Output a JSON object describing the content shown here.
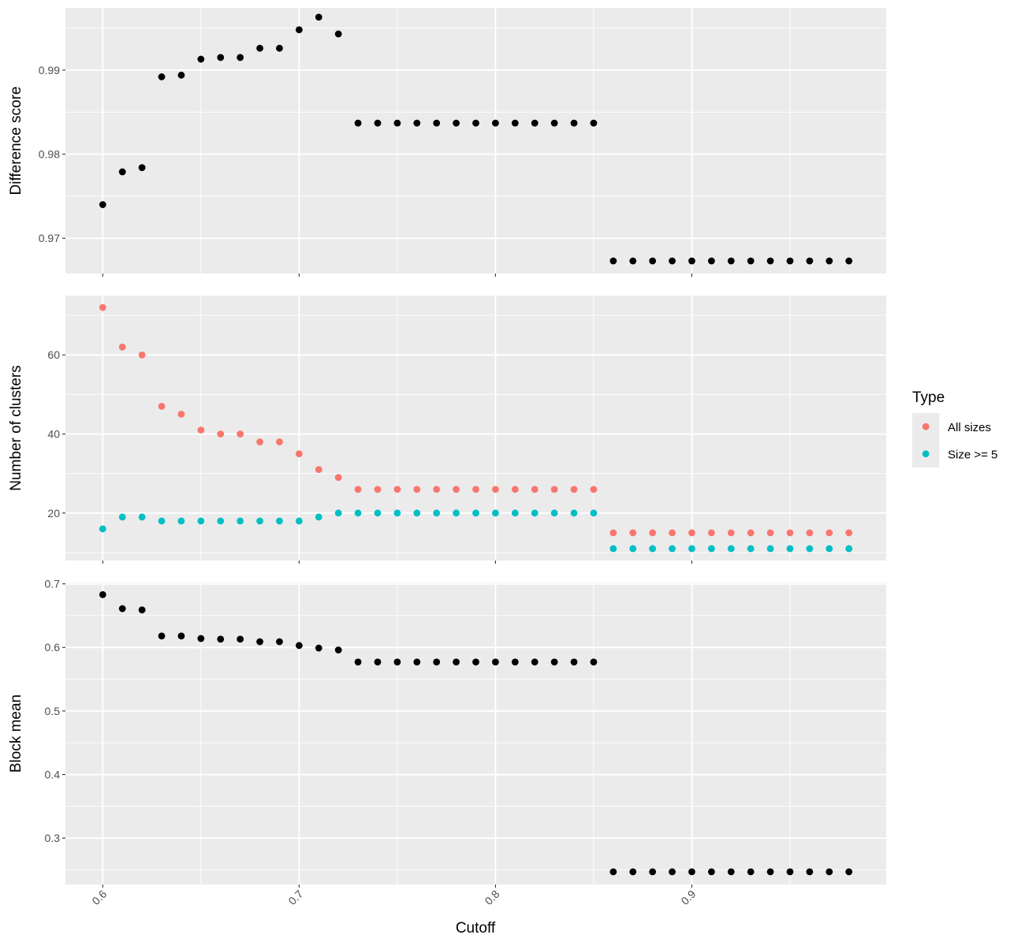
{
  "chart_data": {
    "type": "scatter",
    "xlabel": "Cutoff",
    "xlim": [
      0.581,
      0.999
    ],
    "x_ticks": [
      0.6,
      0.7,
      0.8,
      0.9
    ],
    "x_tick_labels": [
      "0.6",
      "0.7",
      "0.8",
      "0.9"
    ],
    "grid": true,
    "colors": {
      "panel_bg": "#ebebeb",
      "grid_major": "#ffffff",
      "point_default": "#000000",
      "all_sizes": "#f8766d",
      "size_ge5": "#00bfc4",
      "legend_key_bg": "#ebebeb"
    },
    "legend": {
      "title": "Type",
      "position": "right",
      "entries": [
        {
          "label": "All sizes",
          "color": "#f8766d"
        },
        {
          "label": "Size >= 5",
          "color": "#00bfc4"
        }
      ]
    },
    "panels": [
      {
        "ylabel": "Difference score",
        "ylim": [
          0.9658,
          0.9974
        ],
        "y_ticks": [
          0.97,
          0.98,
          0.99
        ],
        "y_tick_labels": [
          "0.97",
          "0.98",
          "0.99"
        ],
        "series": [
          {
            "color": "#000000",
            "x": [
              0.6,
              0.61,
              0.62,
              0.63,
              0.64,
              0.65,
              0.66,
              0.67,
              0.68,
              0.69,
              0.7,
              0.71,
              0.72,
              0.73,
              0.74,
              0.75,
              0.76,
              0.77,
              0.78,
              0.79,
              0.8,
              0.81,
              0.82,
              0.83,
              0.84,
              0.85,
              0.86,
              0.87,
              0.88,
              0.89,
              0.9,
              0.91,
              0.92,
              0.93,
              0.94,
              0.95,
              0.96,
              0.97,
              0.98
            ],
            "y": [
              0.974,
              0.9779,
              0.9784,
              0.9892,
              0.9894,
              0.9913,
              0.9915,
              0.9915,
              0.9926,
              0.9926,
              0.9948,
              0.9963,
              0.9943,
              0.9837,
              0.9837,
              0.9837,
              0.9837,
              0.9837,
              0.9837,
              0.9837,
              0.9837,
              0.9837,
              0.9837,
              0.9837,
              0.9837,
              0.9837,
              0.9673,
              0.9673,
              0.9673,
              0.9673,
              0.9673,
              0.9673,
              0.9673,
              0.9673,
              0.9673,
              0.9673,
              0.9673,
              0.9673,
              0.9673
            ]
          }
        ]
      },
      {
        "ylabel": "Number of clusters",
        "ylim": [
          8,
          75
        ],
        "y_ticks": [
          20,
          40,
          60
        ],
        "y_tick_labels": [
          "20",
          "40",
          "60"
        ],
        "series": [
          {
            "name": "All sizes",
            "color": "#f8766d",
            "x": [
              0.6,
              0.61,
              0.62,
              0.63,
              0.64,
              0.65,
              0.66,
              0.67,
              0.68,
              0.69,
              0.7,
              0.71,
              0.72,
              0.73,
              0.74,
              0.75,
              0.76,
              0.77,
              0.78,
              0.79,
              0.8,
              0.81,
              0.82,
              0.83,
              0.84,
              0.85,
              0.86,
              0.87,
              0.88,
              0.89,
              0.9,
              0.91,
              0.92,
              0.93,
              0.94,
              0.95,
              0.96,
              0.97,
              0.98
            ],
            "y": [
              72,
              62,
              60,
              47,
              45,
              41,
              40,
              40,
              38,
              38,
              35,
              31,
              29,
              26,
              26,
              26,
              26,
              26,
              26,
              26,
              26,
              26,
              26,
              26,
              26,
              26,
              15,
              15,
              15,
              15,
              15,
              15,
              15,
              15,
              15,
              15,
              15,
              15,
              15
            ]
          },
          {
            "name": "Size >= 5",
            "color": "#00bfc4",
            "x": [
              0.6,
              0.61,
              0.62,
              0.63,
              0.64,
              0.65,
              0.66,
              0.67,
              0.68,
              0.69,
              0.7,
              0.71,
              0.72,
              0.73,
              0.74,
              0.75,
              0.76,
              0.77,
              0.78,
              0.79,
              0.8,
              0.81,
              0.82,
              0.83,
              0.84,
              0.85,
              0.86,
              0.87,
              0.88,
              0.89,
              0.9,
              0.91,
              0.92,
              0.93,
              0.94,
              0.95,
              0.96,
              0.97,
              0.98
            ],
            "y": [
              16,
              19,
              19,
              18,
              18,
              18,
              18,
              18,
              18,
              18,
              18,
              19,
              20,
              20,
              20,
              20,
              20,
              20,
              20,
              20,
              20,
              20,
              20,
              20,
              20,
              20,
              11,
              11,
              11,
              11,
              11,
              11,
              11,
              11,
              11,
              11,
              11,
              11,
              11
            ]
          }
        ]
      },
      {
        "ylabel": "Block mean",
        "ylim": [
          0.227,
          0.702
        ],
        "y_ticks": [
          0.3,
          0.4,
          0.5,
          0.6,
          0.7
        ],
        "y_tick_labels": [
          "0.3",
          "0.4",
          "0.5",
          "0.6",
          "0.7"
        ],
        "series": [
          {
            "color": "#000000",
            "x": [
              0.6,
              0.61,
              0.62,
              0.63,
              0.64,
              0.65,
              0.66,
              0.67,
              0.68,
              0.69,
              0.7,
              0.71,
              0.72,
              0.73,
              0.74,
              0.75,
              0.76,
              0.77,
              0.78,
              0.79,
              0.8,
              0.81,
              0.82,
              0.83,
              0.84,
              0.85,
              0.86,
              0.87,
              0.88,
              0.89,
              0.9,
              0.91,
              0.92,
              0.93,
              0.94,
              0.95,
              0.96,
              0.97,
              0.98
            ],
            "y": [
              0.683,
              0.661,
              0.659,
              0.618,
              0.618,
              0.614,
              0.613,
              0.613,
              0.609,
              0.609,
              0.603,
              0.599,
              0.596,
              0.577,
              0.577,
              0.577,
              0.577,
              0.577,
              0.577,
              0.577,
              0.577,
              0.577,
              0.577,
              0.577,
              0.577,
              0.577,
              0.247,
              0.247,
              0.247,
              0.247,
              0.247,
              0.247,
              0.247,
              0.247,
              0.247,
              0.247,
              0.247,
              0.247,
              0.247
            ]
          }
        ]
      }
    ]
  }
}
